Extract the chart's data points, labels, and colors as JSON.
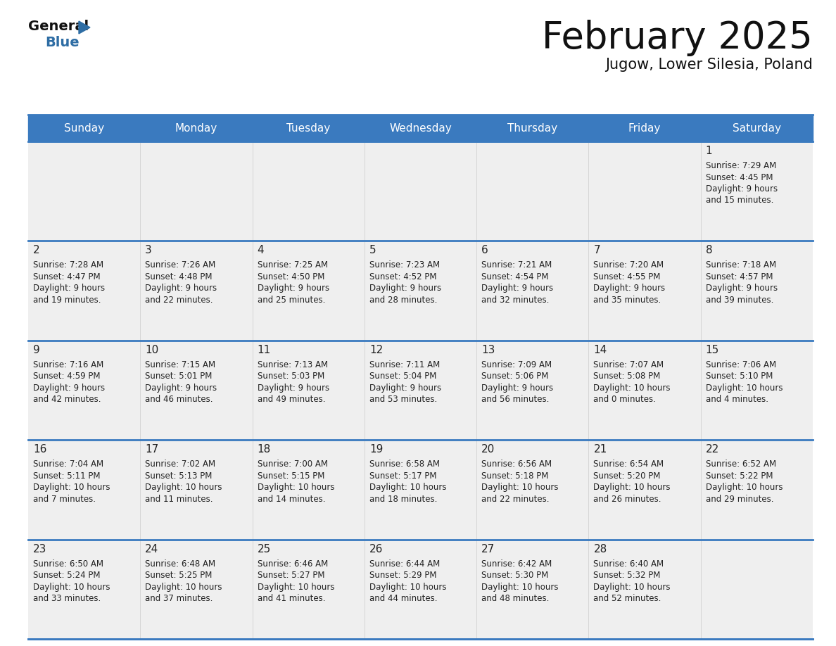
{
  "title": "February 2025",
  "subtitle": "Jugow, Lower Silesia, Poland",
  "header_color": "#3a7abf",
  "header_text_color": "#ffffff",
  "cell_bg": "#efefef",
  "cell_bg_white": "#ffffff",
  "day_number_color": "#222222",
  "text_color": "#222222",
  "line_color": "#3a7abf",
  "days_of_week": [
    "Sunday",
    "Monday",
    "Tuesday",
    "Wednesday",
    "Thursday",
    "Friday",
    "Saturday"
  ],
  "weeks": [
    [
      {
        "day": "",
        "info": ""
      },
      {
        "day": "",
        "info": ""
      },
      {
        "day": "",
        "info": ""
      },
      {
        "day": "",
        "info": ""
      },
      {
        "day": "",
        "info": ""
      },
      {
        "day": "",
        "info": ""
      },
      {
        "day": "1",
        "info": "Sunrise: 7:29 AM\nSunset: 4:45 PM\nDaylight: 9 hours\nand 15 minutes."
      }
    ],
    [
      {
        "day": "2",
        "info": "Sunrise: 7:28 AM\nSunset: 4:47 PM\nDaylight: 9 hours\nand 19 minutes."
      },
      {
        "day": "3",
        "info": "Sunrise: 7:26 AM\nSunset: 4:48 PM\nDaylight: 9 hours\nand 22 minutes."
      },
      {
        "day": "4",
        "info": "Sunrise: 7:25 AM\nSunset: 4:50 PM\nDaylight: 9 hours\nand 25 minutes."
      },
      {
        "day": "5",
        "info": "Sunrise: 7:23 AM\nSunset: 4:52 PM\nDaylight: 9 hours\nand 28 minutes."
      },
      {
        "day": "6",
        "info": "Sunrise: 7:21 AM\nSunset: 4:54 PM\nDaylight: 9 hours\nand 32 minutes."
      },
      {
        "day": "7",
        "info": "Sunrise: 7:20 AM\nSunset: 4:55 PM\nDaylight: 9 hours\nand 35 minutes."
      },
      {
        "day": "8",
        "info": "Sunrise: 7:18 AM\nSunset: 4:57 PM\nDaylight: 9 hours\nand 39 minutes."
      }
    ],
    [
      {
        "day": "9",
        "info": "Sunrise: 7:16 AM\nSunset: 4:59 PM\nDaylight: 9 hours\nand 42 minutes."
      },
      {
        "day": "10",
        "info": "Sunrise: 7:15 AM\nSunset: 5:01 PM\nDaylight: 9 hours\nand 46 minutes."
      },
      {
        "day": "11",
        "info": "Sunrise: 7:13 AM\nSunset: 5:03 PM\nDaylight: 9 hours\nand 49 minutes."
      },
      {
        "day": "12",
        "info": "Sunrise: 7:11 AM\nSunset: 5:04 PM\nDaylight: 9 hours\nand 53 minutes."
      },
      {
        "day": "13",
        "info": "Sunrise: 7:09 AM\nSunset: 5:06 PM\nDaylight: 9 hours\nand 56 minutes."
      },
      {
        "day": "14",
        "info": "Sunrise: 7:07 AM\nSunset: 5:08 PM\nDaylight: 10 hours\nand 0 minutes."
      },
      {
        "day": "15",
        "info": "Sunrise: 7:06 AM\nSunset: 5:10 PM\nDaylight: 10 hours\nand 4 minutes."
      }
    ],
    [
      {
        "day": "16",
        "info": "Sunrise: 7:04 AM\nSunset: 5:11 PM\nDaylight: 10 hours\nand 7 minutes."
      },
      {
        "day": "17",
        "info": "Sunrise: 7:02 AM\nSunset: 5:13 PM\nDaylight: 10 hours\nand 11 minutes."
      },
      {
        "day": "18",
        "info": "Sunrise: 7:00 AM\nSunset: 5:15 PM\nDaylight: 10 hours\nand 14 minutes."
      },
      {
        "day": "19",
        "info": "Sunrise: 6:58 AM\nSunset: 5:17 PM\nDaylight: 10 hours\nand 18 minutes."
      },
      {
        "day": "20",
        "info": "Sunrise: 6:56 AM\nSunset: 5:18 PM\nDaylight: 10 hours\nand 22 minutes."
      },
      {
        "day": "21",
        "info": "Sunrise: 6:54 AM\nSunset: 5:20 PM\nDaylight: 10 hours\nand 26 minutes."
      },
      {
        "day": "22",
        "info": "Sunrise: 6:52 AM\nSunset: 5:22 PM\nDaylight: 10 hours\nand 29 minutes."
      }
    ],
    [
      {
        "day": "23",
        "info": "Sunrise: 6:50 AM\nSunset: 5:24 PM\nDaylight: 10 hours\nand 33 minutes."
      },
      {
        "day": "24",
        "info": "Sunrise: 6:48 AM\nSunset: 5:25 PM\nDaylight: 10 hours\nand 37 minutes."
      },
      {
        "day": "25",
        "info": "Sunrise: 6:46 AM\nSunset: 5:27 PM\nDaylight: 10 hours\nand 41 minutes."
      },
      {
        "day": "26",
        "info": "Sunrise: 6:44 AM\nSunset: 5:29 PM\nDaylight: 10 hours\nand 44 minutes."
      },
      {
        "day": "27",
        "info": "Sunrise: 6:42 AM\nSunset: 5:30 PM\nDaylight: 10 hours\nand 48 minutes."
      },
      {
        "day": "28",
        "info": "Sunrise: 6:40 AM\nSunset: 5:32 PM\nDaylight: 10 hours\nand 52 minutes."
      },
      {
        "day": "",
        "info": ""
      }
    ]
  ]
}
